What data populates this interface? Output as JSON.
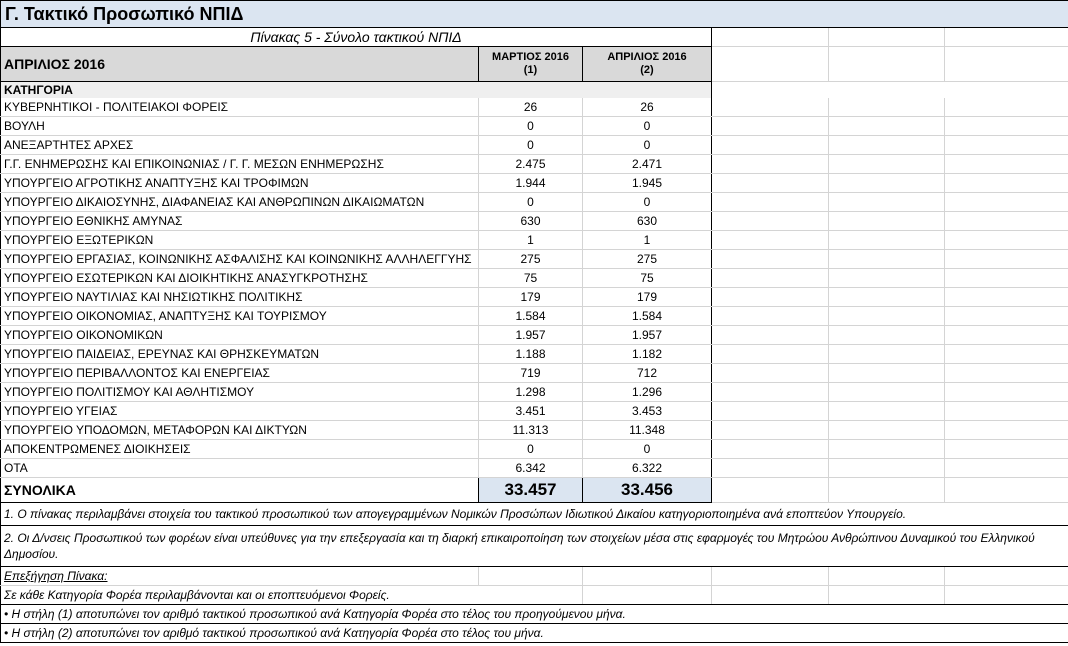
{
  "title": "Γ. Τακτικό Προσωπικό ΝΠΙΔ",
  "subtitle": "Πίνακας 5 - Σύνολο τακτικού ΝΠΙΔ",
  "header": {
    "month_label": "ΑΠΡΙΛΙΟΣ 2016",
    "col1_line1": "ΜΑΡΤΙΟΣ 2016",
    "col1_line2": "(1)",
    "col2_line1": "ΑΠΡΙΛΙΟΣ 2016",
    "col2_line2": "(2)"
  },
  "category_header": "ΚΑΤΗΓΟΡΙΑ",
  "rows": [
    {
      "name": "ΚΥΒΕΡΝΗΤΙΚΟΙ - ΠΟΛΙΤΕΙΑΚΟΙ ΦΟΡΕΙΣ",
      "c1": "26",
      "c2": "26"
    },
    {
      "name": "ΒΟΥΛΗ",
      "c1": "0",
      "c2": "0"
    },
    {
      "name": "ΑΝΕΞΑΡΤΗΤΕΣ ΑΡΧΕΣ",
      "c1": "0",
      "c2": "0"
    },
    {
      "name": "Γ.Γ. ΕΝΗΜΕΡΩΣΗΣ ΚΑΙ ΕΠΙΚΟΙΝΩΝΙΑΣ / Γ. Γ. ΜΕΣΩΝ ΕΝΗΜΕΡΩΣΗΣ",
      "c1": "2.475",
      "c2": "2.471"
    },
    {
      "name": "ΥΠΟΥΡΓΕΙΟ ΑΓΡΟΤΙΚΗΣ ΑΝΑΠΤΥΞΗΣ ΚΑΙ ΤΡΟΦΙΜΩΝ",
      "c1": "1.944",
      "c2": "1.945"
    },
    {
      "name": "ΥΠΟΥΡΓΕΙΟ ΔΙΚΑΙΟΣΥΝΗΣ, ΔΙΑΦΑΝΕΙΑΣ ΚΑΙ ΑΝΘΡΩΠΙΝΩΝ ΔΙΚΑΙΩΜΑΤΩΝ",
      "c1": "0",
      "c2": "0"
    },
    {
      "name": "ΥΠΟΥΡΓΕΙΟ ΕΘΝΙΚΗΣ ΑΜΥΝΑΣ",
      "c1": "630",
      "c2": "630"
    },
    {
      "name": "ΥΠΟΥΡΓΕΙΟ ΕΞΩΤΕΡΙΚΩΝ",
      "c1": "1",
      "c2": "1"
    },
    {
      "name": "ΥΠΟΥΡΓΕΙΟ ΕΡΓΑΣΙΑΣ, ΚΟΙΝΩΝΙΚΗΣ ΑΣΦΑΛΙΣΗΣ ΚΑΙ ΚΟΙΝΩΝΙΚΗΣ ΑΛΛΗΛΕΓΓΥΗΣ",
      "c1": "275",
      "c2": "275"
    },
    {
      "name": "ΥΠΟΥΡΓΕΙΟ ΕΣΩΤΕΡΙΚΩΝ ΚΑΙ ΔΙΟΙΚΗΤΙΚΗΣ ΑΝΑΣΥΓΚΡΟΤΗΣΗΣ",
      "c1": "75",
      "c2": "75"
    },
    {
      "name": "ΥΠΟΥΡΓΕΙΟ ΝΑΥΤΙΛΙΑΣ ΚΑΙ ΝΗΣΙΩΤΙΚΗΣ ΠΟΛΙΤΙΚΗΣ",
      "c1": "179",
      "c2": "179"
    },
    {
      "name": "ΥΠΟΥΡΓΕΙΟ ΟΙΚΟΝΟΜΙΑΣ, ΑΝΑΠΤΥΞΗΣ ΚΑΙ ΤΟΥΡΙΣΜΟΥ",
      "c1": "1.584",
      "c2": "1.584"
    },
    {
      "name": "ΥΠΟΥΡΓΕΙΟ ΟΙΚΟΝΟΜΙΚΩΝ",
      "c1": "1.957",
      "c2": "1.957"
    },
    {
      "name": "ΥΠΟΥΡΓΕΙΟ ΠΑΙΔΕΙΑΣ, ΕΡΕΥΝΑΣ ΚΑΙ ΘΡΗΣΚΕΥΜΑΤΩΝ",
      "c1": "1.188",
      "c2": "1.182"
    },
    {
      "name": "ΥΠΟΥΡΓΕΙΟ ΠΕΡΙΒΑΛΛΟΝΤΟΣ ΚΑΙ ΕΝΕΡΓΕΙΑΣ",
      "c1": "719",
      "c2": "712"
    },
    {
      "name": "ΥΠΟΥΡΓΕΙΟ ΠΟΛΙΤΙΣΜΟΥ ΚΑΙ ΑΘΛΗΤΙΣΜΟΥ",
      "c1": "1.298",
      "c2": "1.296"
    },
    {
      "name": "ΥΠΟΥΡΓΕΙΟ ΥΓΕΙΑΣ",
      "c1": "3.451",
      "c2": "3.453"
    },
    {
      "name": "ΥΠΟΥΡΓΕΙΟ ΥΠΟΔΟΜΩΝ, ΜΕΤΑΦΟΡΩΝ ΚΑΙ ΔΙΚΤΥΩΝ",
      "c1": "11.313",
      "c2": "11.348"
    },
    {
      "name": "ΑΠΟΚΕΝΤΡΩΜΕΝΕΣ ΔΙΟΙΚΗΣΕΙΣ",
      "c1": "0",
      "c2": "0"
    },
    {
      "name": "ΟΤΑ",
      "c1": "6.342",
      "c2": "6.322"
    }
  ],
  "totals": {
    "label": "ΣΥΝΟΛΙΚΑ",
    "c1": "33.457",
    "c2": "33.456"
  },
  "notes": {
    "note1": "1. Ο πίνακας περιλαμβάνει στοιχεία του τακτικού προσωπικού των απογεγραμμένων Νομικών Προσώπων Ιδιωτικού Δικαίου κατηγοριοποιημένα ανά εποπτεύον Υπουργείο.",
    "note2": "2. Οι Δ/νσεις Προσωπικού των φορέων είναι υπεύθυνες για την επεξεργασία και τη διαρκή επικαιροποίηση των στοιχείων μέσα στις εφαρμογές του Μητρώου Ανθρώπινου Δυναμικού του Ελληνικού Δημοσίου.",
    "explain_title": "Επεξήγηση Πίνακα:",
    "explain1": "Σε κάθε Κατηγορία Φορέα περιλαμβάνονται και οι εποπτευόμενοι Φορείς.",
    "explain2": "• Η στήλη (1) αποτυπώνει τον αριθμό τακτικού προσωπικού ανά Κατηγορία Φορέα στο τέλος του προηγούμενου μήνα.",
    "explain3": "• Η στήλη (2) αποτυπώνει τον αριθμό τακτικού προσωπικού ανά Κατηγορία Φορέα στο τέλος του μήνα."
  },
  "colors": {
    "title_bg": "#dbe5f1",
    "header_bg": "#d9d9d9",
    "total_bg": "#dbe5f1",
    "grid": "#d4d4d4"
  }
}
